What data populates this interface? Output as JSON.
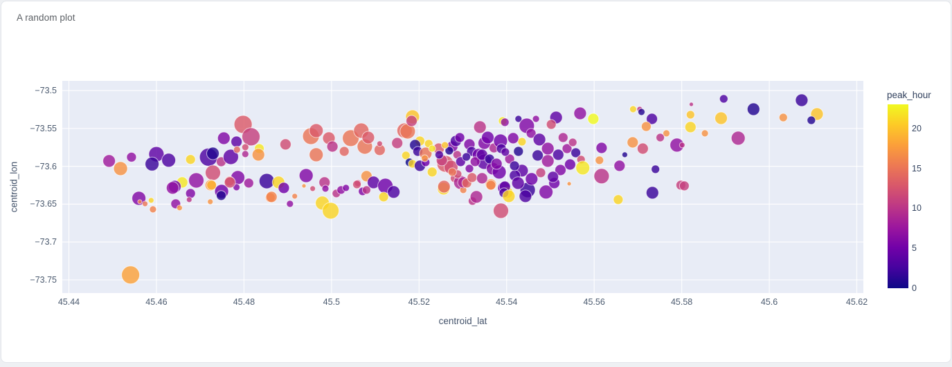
{
  "card": {
    "title": "A random plot"
  },
  "colors": {
    "page_bg": "#eef0f3",
    "card_bg": "#ffffff",
    "card_border": "#e2e5ea",
    "plot_bg": "#e8ecf6",
    "gridline": "#ffffff",
    "tick_label": "#4b5a6f",
    "axis_title": "#44536b",
    "chart_title": "#5d6166",
    "colorbar_text": "#2f3f5c",
    "point_stroke": "#ffffff"
  },
  "chart_data": {
    "type": "scatter",
    "title": "A random plot",
    "xlabel": "centroid_lat",
    "ylabel": "centroid_lon",
    "grid": true,
    "x_range": [
      45.4385,
      45.6215
    ],
    "y_range": [
      -73.7674,
      -73.4872
    ],
    "x_tick_values": [
      45.44,
      45.46,
      45.48,
      45.5,
      45.52,
      45.54,
      45.56,
      45.58,
      45.6,
      45.62
    ],
    "x_tick_labels": [
      "45.44",
      "45.46",
      "45.48",
      "45.5",
      "45.52",
      "45.54",
      "45.56",
      "45.58",
      "45.6",
      "45.62"
    ],
    "y_tick_values": [
      -73.5,
      -73.55,
      -73.6,
      -73.65,
      -73.7,
      -73.75
    ],
    "y_tick_labels": [
      "−73.5",
      "−73.55",
      "−73.6",
      "−73.65",
      "−73.7",
      "−73.75"
    ],
    "colorbar": {
      "title": "peak_hour",
      "min": 0,
      "max": 23,
      "tick_values": [
        0,
        5,
        10,
        15,
        20
      ],
      "tick_labels": [
        "0",
        "5",
        "10",
        "15",
        "20"
      ],
      "colorscale_name": "plasma",
      "stops": [
        "#0d0887",
        "#46039f",
        "#7201a8",
        "#9c179e",
        "#bd3786",
        "#d8576b",
        "#ed7953",
        "#fb9f3a",
        "#fdca26",
        "#f0f921"
      ]
    },
    "point_format": [
      "centroid_lat",
      "centroid_lon",
      "radius_px",
      "peak_hour"
    ],
    "points": [
      [
        45.4492,
        -73.593,
        9,
        8
      ],
      [
        45.4518,
        -73.603,
        10,
        17
      ],
      [
        45.4543,
        -73.588,
        7,
        7
      ],
      [
        45.46,
        -73.584,
        11,
        4
      ],
      [
        45.459,
        -73.597,
        10,
        2
      ],
      [
        45.4628,
        -73.592,
        10,
        3
      ],
      [
        45.4678,
        -73.591,
        7,
        21
      ],
      [
        45.4719,
        -73.588,
        13,
        3
      ],
      [
        45.4729,
        -73.583,
        9,
        1
      ],
      [
        45.4748,
        -73.594,
        7,
        10
      ],
      [
        45.477,
        -73.5876,
        11,
        4
      ],
      [
        45.4798,
        -73.5447,
        13,
        13
      ],
      [
        45.4816,
        -73.561,
        13,
        11
      ],
      [
        45.4754,
        -73.563,
        9,
        6
      ],
      [
        45.4783,
        -73.5675,
        8,
        4
      ],
      [
        45.4784,
        -73.578,
        5,
        14
      ],
      [
        45.4803,
        -73.5748,
        5,
        12
      ],
      [
        45.4835,
        -73.5766,
        7,
        22
      ],
      [
        45.4833,
        -73.5848,
        9,
        17
      ],
      [
        45.4803,
        -73.5839,
        5,
        9
      ],
      [
        45.4729,
        -73.6085,
        11,
        12
      ],
      [
        45.4786,
        -73.6149,
        10,
        6
      ],
      [
        45.4691,
        -73.6186,
        11,
        7
      ],
      [
        45.4659,
        -73.6213,
        8,
        22
      ],
      [
        45.4642,
        -73.6268,
        9,
        5
      ],
      [
        45.4767,
        -73.6195,
        7,
        14
      ],
      [
        45.4724,
        -73.6249,
        8,
        17
      ],
      [
        45.4852,
        -73.6195,
        11,
        2
      ],
      [
        45.4811,
        -73.6222,
        7,
        8
      ],
      [
        45.4783,
        -73.6277,
        5,
        6
      ],
      [
        45.456,
        -73.6423,
        10,
        6
      ],
      [
        45.4562,
        -73.6468,
        3,
        16
      ],
      [
        45.4588,
        -73.645,
        4,
        21
      ],
      [
        45.4574,
        -73.6496,
        4,
        15
      ],
      [
        45.4592,
        -73.6569,
        5,
        16
      ],
      [
        45.4637,
        -73.6286,
        9,
        7
      ],
      [
        45.4644,
        -73.6496,
        7,
        7
      ],
      [
        45.4653,
        -73.655,
        4,
        17
      ],
      [
        45.4678,
        -73.6359,
        7,
        6
      ],
      [
        45.4675,
        -73.6441,
        4,
        10
      ],
      [
        45.4723,
        -73.6468,
        4,
        17
      ],
      [
        45.4726,
        -73.6249,
        7,
        19
      ],
      [
        45.4749,
        -73.6331,
        10,
        5
      ],
      [
        45.4748,
        -73.6386,
        7,
        1
      ],
      [
        45.4768,
        -73.6213,
        8,
        12
      ],
      [
        45.486,
        -73.6414,
        7,
        16
      ],
      [
        45.4541,
        -73.7435,
        13,
        18
      ],
      [
        45.4895,
        -73.5711,
        8,
        12
      ],
      [
        45.4953,
        -73.5602,
        12,
        15
      ],
      [
        45.4965,
        -73.5529,
        10,
        13
      ],
      [
        45.4994,
        -73.5629,
        9,
        13
      ],
      [
        45.4965,
        -73.5848,
        10,
        15
      ],
      [
        45.5002,
        -73.5739,
        8,
        10
      ],
      [
        45.5029,
        -73.5803,
        7,
        14
      ],
      [
        45.5044,
        -73.5629,
        12,
        15
      ],
      [
        45.5068,
        -73.5529,
        11,
        14
      ],
      [
        45.5076,
        -73.5739,
        11,
        15
      ],
      [
        45.5084,
        -73.562,
        9,
        13
      ],
      [
        45.511,
        -73.5784,
        8,
        14
      ],
      [
        45.511,
        -73.5702,
        4,
        12
      ],
      [
        45.515,
        -73.5693,
        8,
        11
      ],
      [
        45.5167,
        -73.5529,
        11,
        14
      ],
      [
        45.5185,
        -73.5347,
        10,
        20
      ],
      [
        45.517,
        -73.5857,
        6,
        21
      ],
      [
        45.4942,
        -73.6122,
        10,
        6
      ],
      [
        45.4879,
        -73.6213,
        9,
        21
      ],
      [
        45.4891,
        -73.6286,
        8,
        5
      ],
      [
        45.4984,
        -73.6213,
        8,
        10
      ],
      [
        45.4986,
        -73.6295,
        5,
        7
      ],
      [
        45.4937,
        -73.6259,
        3,
        17
      ],
      [
        45.4957,
        -73.6295,
        4,
        12
      ],
      [
        45.508,
        -73.6131,
        8,
        17
      ],
      [
        45.5096,
        -73.6213,
        9,
        4
      ],
      [
        45.506,
        -73.6222,
        5,
        11
      ],
      [
        45.5123,
        -73.6259,
        11,
        5
      ],
      [
        45.4863,
        -73.6404,
        8,
        16
      ],
      [
        45.4905,
        -73.6496,
        5,
        7
      ],
      [
        45.4916,
        -73.6395,
        4,
        16
      ],
      [
        45.4979,
        -73.6486,
        10,
        21
      ],
      [
        45.4998,
        -73.6587,
        12,
        21
      ],
      [
        45.5011,
        -73.6359,
        6,
        10
      ],
      [
        45.5022,
        -73.6313,
        6,
        7
      ],
      [
        45.5033,
        -73.6286,
        5,
        6
      ],
      [
        45.5058,
        -73.624,
        6,
        12
      ],
      [
        45.5071,
        -73.6331,
        6,
        6
      ],
      [
        45.508,
        -73.6313,
        6,
        10
      ],
      [
        45.5119,
        -73.6404,
        7,
        21
      ],
      [
        45.5142,
        -73.634,
        9,
        3
      ],
      [
        45.5256,
        -73.6295,
        9,
        21
      ],
      [
        45.5281,
        -73.6158,
        6,
        12
      ],
      [
        45.5295,
        -73.6213,
        10,
        9
      ],
      [
        45.5301,
        -73.6313,
        5,
        16
      ],
      [
        45.5322,
        -73.6459,
        6,
        10
      ],
      [
        45.5257,
        -73.6268,
        9,
        14
      ],
      [
        45.5174,
        -73.5538,
        11,
        15
      ],
      [
        45.5183,
        -73.5401,
        8,
        11
      ],
      [
        45.5202,
        -73.5666,
        7,
        21
      ],
      [
        45.5222,
        -73.5702,
        6,
        21
      ],
      [
        45.5191,
        -73.572,
        8,
        1
      ],
      [
        45.5197,
        -73.5803,
        7,
        2
      ],
      [
        45.5215,
        -73.583,
        9,
        15
      ],
      [
        45.5245,
        -73.5766,
        8,
        13
      ],
      [
        45.523,
        -73.5766,
        5,
        22
      ],
      [
        45.5178,
        -73.5948,
        6,
        0
      ],
      [
        45.5185,
        -73.5967,
        6,
        21
      ],
      [
        45.5202,
        -73.5994,
        8,
        2
      ],
      [
        45.5215,
        -73.5948,
        6,
        5
      ],
      [
        45.5213,
        -73.5894,
        5,
        17
      ],
      [
        45.523,
        -73.6076,
        7,
        21
      ],
      [
        45.526,
        -73.5967,
        12,
        13
      ],
      [
        45.5273,
        -73.6012,
        10,
        12
      ],
      [
        45.5252,
        -73.5921,
        8,
        11
      ],
      [
        45.5287,
        -73.5848,
        6,
        10
      ],
      [
        45.5276,
        -73.5739,
        8,
        6
      ],
      [
        45.5284,
        -73.5666,
        8,
        3
      ],
      [
        45.5293,
        -73.562,
        7,
        5
      ],
      [
        45.5315,
        -73.5711,
        8,
        6
      ],
      [
        45.532,
        -73.5803,
        7,
        3
      ],
      [
        45.5336,
        -73.5848,
        9,
        5
      ],
      [
        45.5371,
        -73.5757,
        7,
        9
      ],
      [
        45.5349,
        -73.5693,
        9,
        6
      ],
      [
        45.5357,
        -73.562,
        9,
        5
      ],
      [
        45.5339,
        -73.5483,
        9,
        10
      ],
      [
        45.5386,
        -73.5666,
        10,
        5
      ],
      [
        45.5388,
        -73.5766,
        7,
        3
      ],
      [
        45.5349,
        -73.5939,
        11,
        4
      ],
      [
        45.5368,
        -73.603,
        9,
        6
      ],
      [
        45.5383,
        -73.6076,
        10,
        5
      ],
      [
        45.5315,
        -73.603,
        6,
        6
      ],
      [
        45.5288,
        -73.6103,
        6,
        12
      ],
      [
        45.5301,
        -73.6213,
        8,
        9
      ],
      [
        45.5309,
        -73.6222,
        7,
        14
      ],
      [
        45.5364,
        -73.624,
        8,
        17
      ],
      [
        45.5394,
        -73.6286,
        9,
        5
      ],
      [
        45.5402,
        -73.6349,
        8,
        21
      ],
      [
        45.5331,
        -73.6404,
        9,
        9
      ],
      [
        45.5435,
        -73.5675,
        6,
        21
      ],
      [
        45.5415,
        -73.5629,
        8,
        6
      ],
      [
        45.5427,
        -73.5803,
        7,
        1
      ],
      [
        45.5435,
        -73.6058,
        9,
        4
      ],
      [
        45.5419,
        -73.6122,
        8,
        3
      ],
      [
        45.5391,
        -73.5401,
        6,
        22
      ],
      [
        45.5295,
        -73.5939,
        7,
        4
      ],
      [
        45.5308,
        -73.5876,
        6,
        2
      ],
      [
        45.5328,
        -73.5939,
        7,
        7
      ],
      [
        45.5344,
        -73.5848,
        8,
        4
      ],
      [
        45.5361,
        -73.5903,
        7,
        2
      ],
      [
        45.5377,
        -73.5967,
        8,
        6
      ],
      [
        45.5407,
        -73.5903,
        7,
        8
      ],
      [
        45.5418,
        -73.5994,
        7,
        2
      ],
      [
        45.5397,
        -73.5812,
        6,
        4
      ],
      [
        45.5269,
        -73.5794,
        6,
        1
      ],
      [
        45.5246,
        -73.5848,
        6,
        3
      ],
      [
        45.5259,
        -73.5721,
        5,
        20
      ],
      [
        45.5276,
        -73.6076,
        6,
        15
      ],
      [
        45.5321,
        -73.6149,
        7,
        13
      ],
      [
        45.5396,
        -73.5419,
        6,
        7
      ],
      [
        45.5427,
        -73.5374,
        5,
        2
      ],
      [
        45.5446,
        -73.5465,
        11,
        6
      ],
      [
        45.5467,
        -73.5374,
        5,
        7
      ],
      [
        45.5513,
        -73.5356,
        9,
        4
      ],
      [
        45.5568,
        -73.5301,
        9,
        7
      ],
      [
        45.5598,
        -73.5374,
        8,
        23
      ],
      [
        45.5456,
        -73.5565,
        7,
        7
      ],
      [
        45.5475,
        -73.5647,
        9,
        4
      ],
      [
        45.5494,
        -73.5766,
        9,
        7
      ],
      [
        45.5518,
        -73.5848,
        8,
        3
      ],
      [
        45.5538,
        -73.5766,
        7,
        8
      ],
      [
        45.5529,
        -73.562,
        7,
        9
      ],
      [
        45.5551,
        -73.5684,
        6,
        10
      ],
      [
        45.5558,
        -73.5821,
        7,
        2
      ],
      [
        45.557,
        -73.5912,
        6,
        12
      ],
      [
        45.5545,
        -73.5976,
        8,
        5
      ],
      [
        45.5523,
        -73.6049,
        8,
        6
      ],
      [
        45.5494,
        -73.593,
        9,
        8
      ],
      [
        45.5471,
        -73.5857,
        8,
        2
      ],
      [
        45.5478,
        -73.6085,
        7,
        11
      ],
      [
        45.5502,
        -73.5447,
        7,
        12
      ],
      [
        45.5689,
        -73.5246,
        5,
        21
      ],
      [
        45.5704,
        -73.5246,
        4,
        10
      ],
      [
        45.5708,
        -73.5283,
        5,
        1
      ],
      [
        45.5732,
        -73.5374,
        8,
        3
      ],
      [
        45.5719,
        -73.5474,
        7,
        17
      ],
      [
        45.5765,
        -73.5565,
        5,
        17
      ],
      [
        45.5751,
        -73.562,
        6,
        10
      ],
      [
        45.5688,
        -73.5684,
        8,
        17
      ],
      [
        45.5711,
        -73.5766,
        8,
        12
      ],
      [
        45.5789,
        -73.572,
        10,
        7
      ],
      [
        45.567,
        -73.5848,
        4,
        1
      ],
      [
        45.5658,
        -73.5994,
        8,
        7
      ],
      [
        45.574,
        -73.6039,
        6,
        2
      ],
      [
        45.5617,
        -73.613,
        11,
        10
      ],
      [
        45.5612,
        -73.5921,
        6,
        17
      ],
      [
        45.5617,
        -73.5757,
        8,
        6
      ],
      [
        45.5574,
        -73.6021,
        10,
        22
      ],
      [
        45.5344,
        -73.6158,
        8,
        9
      ],
      [
        45.5364,
        -73.6249,
        7,
        16
      ],
      [
        45.5396,
        -73.6268,
        8,
        4
      ],
      [
        45.5394,
        -73.635,
        7,
        3
      ],
      [
        45.5405,
        -73.6395,
        9,
        21
      ],
      [
        45.5448,
        -73.6313,
        11,
        2
      ],
      [
        45.5443,
        -73.6395,
        9,
        3
      ],
      [
        45.5457,
        -73.6167,
        9,
        5
      ],
      [
        45.5426,
        -73.6222,
        9,
        4
      ],
      [
        45.549,
        -73.634,
        10,
        6
      ],
      [
        45.5509,
        -73.6222,
        8,
        5
      ],
      [
        45.5506,
        -73.614,
        8,
        4
      ],
      [
        45.5543,
        -73.6231,
        3,
        17
      ],
      [
        45.5387,
        -73.6587,
        11,
        12
      ],
      [
        45.5655,
        -73.644,
        7,
        21
      ],
      [
        45.5733,
        -73.635,
        9,
        2
      ],
      [
        45.5798,
        -73.6249,
        7,
        11
      ],
      [
        45.5822,
        -73.5182,
        3,
        10
      ],
      [
        45.582,
        -73.5319,
        6,
        20
      ],
      [
        45.582,
        -73.5483,
        8,
        21
      ],
      [
        45.5853,
        -73.5565,
        5,
        17
      ],
      [
        45.5896,
        -73.5109,
        6,
        3
      ],
      [
        45.589,
        -73.5365,
        9,
        20
      ],
      [
        45.5964,
        -73.5246,
        9,
        1
      ],
      [
        45.5929,
        -73.5629,
        10,
        9
      ],
      [
        45.5801,
        -73.572,
        4,
        10
      ],
      [
        45.6074,
        -73.5128,
        9,
        2
      ],
      [
        45.6032,
        -73.5356,
        6,
        17
      ],
      [
        45.6109,
        -73.531,
        9,
        20
      ],
      [
        45.6096,
        -73.5392,
        6,
        1
      ],
      [
        45.5806,
        -73.6258,
        7,
        11
      ]
    ]
  }
}
